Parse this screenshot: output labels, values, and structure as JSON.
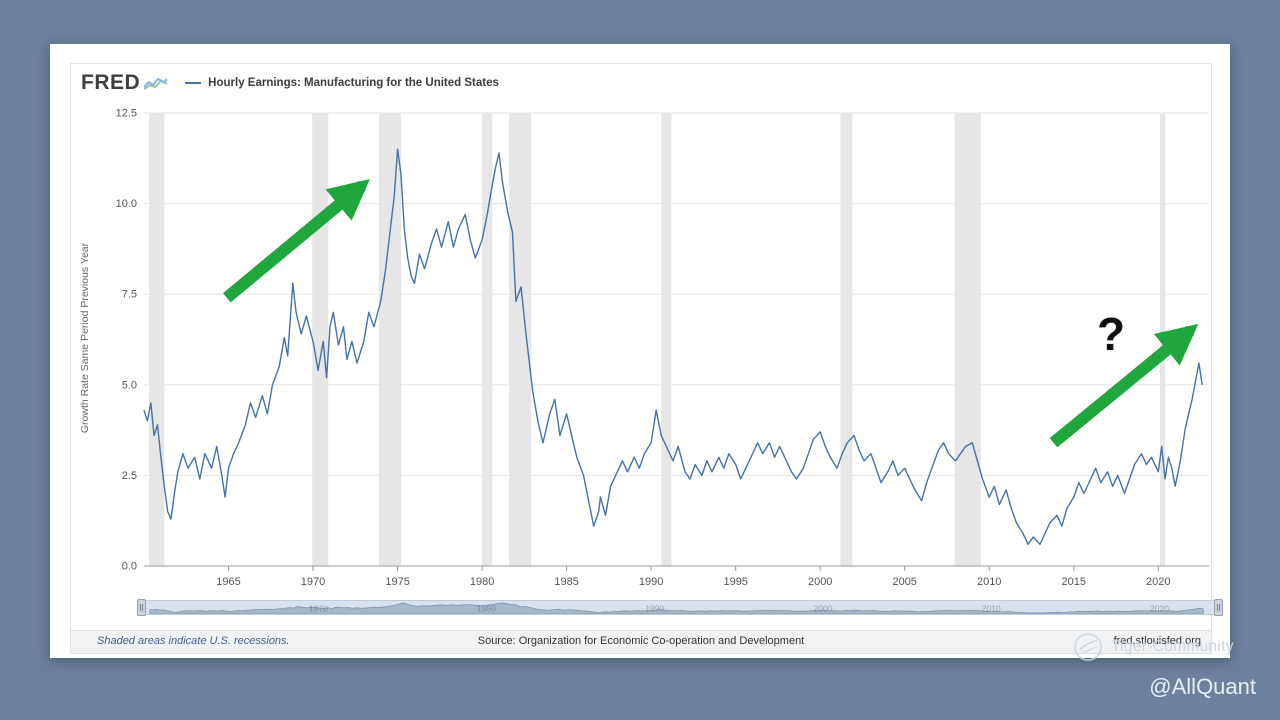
{
  "page": {
    "background_color": "#6c819f",
    "watermark_community": "Tiger-Community",
    "watermark_handle": "@AllQuant"
  },
  "chart": {
    "brand": "FRED",
    "legend_label": "Hourly Earnings: Manufacturing for the United States",
    "y_axis_label": "Growth Rate Same Period Previous Year",
    "footer_left": "Shaded areas indicate U.S. recessions.",
    "footer_center": "Source: Organization for Economic Co-operation and Development",
    "footer_right": "fred.stlouisfed.org",
    "line_color": "#4572a7",
    "recession_color": "#e6e6e6",
    "accent_green": "#1fa63d"
  },
  "chart_data": {
    "type": "line",
    "title": "Hourly Earnings: Manufacturing for the United States",
    "xlabel": "",
    "ylabel": "Growth Rate Same Period Previous Year",
    "legend_position": "top",
    "grid": "horizontal",
    "x_range": [
      1960,
      2023
    ],
    "y_range": [
      0,
      12.5
    ],
    "y_ticks": [
      "0.0",
      "2.5",
      "5.0",
      "7.5",
      "10.0",
      "12.5"
    ],
    "x_ticks": [
      1965,
      1970,
      1975,
      1980,
      1985,
      1990,
      1995,
      2000,
      2005,
      2010,
      2015,
      2020
    ],
    "slider_year_labels": [
      1970,
      1980,
      1990,
      2000,
      2010,
      2020
    ],
    "recessions": [
      [
        1960.3,
        1961.2
      ],
      [
        1969.95,
        1970.9
      ],
      [
        1973.9,
        1975.2
      ],
      [
        1980.0,
        1980.6
      ],
      [
        1981.6,
        1982.9
      ],
      [
        1990.6,
        1991.2
      ],
      [
        2001.2,
        2001.9
      ],
      [
        2007.95,
        2009.5
      ],
      [
        2020.1,
        2020.4
      ]
    ],
    "series": [
      {
        "name": "Hourly Earnings: Manufacturing for the United States",
        "points": [
          [
            1960.0,
            4.3
          ],
          [
            1960.2,
            4.0
          ],
          [
            1960.4,
            4.5
          ],
          [
            1960.6,
            3.6
          ],
          [
            1960.8,
            3.9
          ],
          [
            1961.0,
            3.0
          ],
          [
            1961.2,
            2.2
          ],
          [
            1961.4,
            1.5
          ],
          [
            1961.6,
            1.3
          ],
          [
            1961.8,
            2.0
          ],
          [
            1962.0,
            2.6
          ],
          [
            1962.3,
            3.1
          ],
          [
            1962.6,
            2.7
          ],
          [
            1963.0,
            3.0
          ],
          [
            1963.3,
            2.4
          ],
          [
            1963.6,
            3.1
          ],
          [
            1964.0,
            2.7
          ],
          [
            1964.3,
            3.3
          ],
          [
            1964.6,
            2.5
          ],
          [
            1964.8,
            1.9
          ],
          [
            1965.0,
            2.7
          ],
          [
            1965.3,
            3.1
          ],
          [
            1965.6,
            3.4
          ],
          [
            1966.0,
            3.9
          ],
          [
            1966.3,
            4.5
          ],
          [
            1966.6,
            4.1
          ],
          [
            1967.0,
            4.7
          ],
          [
            1967.3,
            4.2
          ],
          [
            1967.6,
            5.0
          ],
          [
            1968.0,
            5.5
          ],
          [
            1968.3,
            6.3
          ],
          [
            1968.5,
            5.8
          ],
          [
            1968.8,
            7.8
          ],
          [
            1969.0,
            7.0
          ],
          [
            1969.3,
            6.4
          ],
          [
            1969.6,
            6.9
          ],
          [
            1970.0,
            6.2
          ],
          [
            1970.3,
            5.4
          ],
          [
            1970.6,
            6.2
          ],
          [
            1970.8,
            5.2
          ],
          [
            1971.0,
            6.6
          ],
          [
            1971.2,
            7.0
          ],
          [
            1971.5,
            6.1
          ],
          [
            1971.8,
            6.6
          ],
          [
            1972.0,
            5.7
          ],
          [
            1972.3,
            6.2
          ],
          [
            1972.6,
            5.6
          ],
          [
            1973.0,
            6.2
          ],
          [
            1973.3,
            7.0
          ],
          [
            1973.6,
            6.6
          ],
          [
            1974.0,
            7.3
          ],
          [
            1974.3,
            8.2
          ],
          [
            1974.6,
            9.4
          ],
          [
            1974.8,
            10.2
          ],
          [
            1975.0,
            11.5
          ],
          [
            1975.2,
            10.8
          ],
          [
            1975.4,
            9.3
          ],
          [
            1975.6,
            8.5
          ],
          [
            1975.8,
            8.0
          ],
          [
            1976.0,
            7.8
          ],
          [
            1976.3,
            8.6
          ],
          [
            1976.6,
            8.2
          ],
          [
            1977.0,
            8.9
          ],
          [
            1977.3,
            9.3
          ],
          [
            1977.6,
            8.8
          ],
          [
            1978.0,
            9.5
          ],
          [
            1978.3,
            8.8
          ],
          [
            1978.6,
            9.3
          ],
          [
            1979.0,
            9.7
          ],
          [
            1979.3,
            9.0
          ],
          [
            1979.6,
            8.5
          ],
          [
            1980.0,
            9.0
          ],
          [
            1980.3,
            9.7
          ],
          [
            1980.6,
            10.5
          ],
          [
            1980.8,
            11.0
          ],
          [
            1981.0,
            11.4
          ],
          [
            1981.2,
            10.6
          ],
          [
            1981.5,
            9.8
          ],
          [
            1981.8,
            9.2
          ],
          [
            1982.0,
            7.3
          ],
          [
            1982.3,
            7.7
          ],
          [
            1982.6,
            6.4
          ],
          [
            1983.0,
            4.8
          ],
          [
            1983.3,
            4.0
          ],
          [
            1983.6,
            3.4
          ],
          [
            1984.0,
            4.2
          ],
          [
            1984.3,
            4.6
          ],
          [
            1984.6,
            3.6
          ],
          [
            1985.0,
            4.2
          ],
          [
            1985.3,
            3.6
          ],
          [
            1985.6,
            3.0
          ],
          [
            1986.0,
            2.5
          ],
          [
            1986.3,
            1.8
          ],
          [
            1986.6,
            1.1
          ],
          [
            1986.9,
            1.5
          ],
          [
            1987.0,
            1.9
          ],
          [
            1987.3,
            1.4
          ],
          [
            1987.6,
            2.2
          ],
          [
            1988.0,
            2.6
          ],
          [
            1988.3,
            2.9
          ],
          [
            1988.6,
            2.6
          ],
          [
            1989.0,
            3.0
          ],
          [
            1989.3,
            2.7
          ],
          [
            1989.6,
            3.1
          ],
          [
            1990.0,
            3.4
          ],
          [
            1990.3,
            4.3
          ],
          [
            1990.6,
            3.6
          ],
          [
            1991.0,
            3.2
          ],
          [
            1991.3,
            2.9
          ],
          [
            1991.6,
            3.3
          ],
          [
            1992.0,
            2.6
          ],
          [
            1992.3,
            2.4
          ],
          [
            1992.6,
            2.8
          ],
          [
            1993.0,
            2.5
          ],
          [
            1993.3,
            2.9
          ],
          [
            1993.6,
            2.6
          ],
          [
            1994.0,
            3.0
          ],
          [
            1994.3,
            2.7
          ],
          [
            1994.6,
            3.1
          ],
          [
            1995.0,
            2.8
          ],
          [
            1995.3,
            2.4
          ],
          [
            1995.6,
            2.7
          ],
          [
            1996.0,
            3.1
          ],
          [
            1996.3,
            3.4
          ],
          [
            1996.6,
            3.1
          ],
          [
            1997.0,
            3.4
          ],
          [
            1997.3,
            3.0
          ],
          [
            1997.6,
            3.3
          ],
          [
            1998.0,
            2.9
          ],
          [
            1998.3,
            2.6
          ],
          [
            1998.6,
            2.4
          ],
          [
            1999.0,
            2.7
          ],
          [
            1999.3,
            3.1
          ],
          [
            1999.6,
            3.5
          ],
          [
            2000.0,
            3.7
          ],
          [
            2000.3,
            3.3
          ],
          [
            2000.6,
            3.0
          ],
          [
            2001.0,
            2.7
          ],
          [
            2001.3,
            3.1
          ],
          [
            2001.6,
            3.4
          ],
          [
            2002.0,
            3.6
          ],
          [
            2002.3,
            3.2
          ],
          [
            2002.6,
            2.9
          ],
          [
            2003.0,
            3.1
          ],
          [
            2003.3,
            2.7
          ],
          [
            2003.6,
            2.3
          ],
          [
            2004.0,
            2.6
          ],
          [
            2004.3,
            2.9
          ],
          [
            2004.6,
            2.5
          ],
          [
            2005.0,
            2.7
          ],
          [
            2005.3,
            2.4
          ],
          [
            2005.6,
            2.1
          ],
          [
            2006.0,
            1.8
          ],
          [
            2006.3,
            2.3
          ],
          [
            2006.6,
            2.7
          ],
          [
            2007.0,
            3.2
          ],
          [
            2007.3,
            3.4
          ],
          [
            2007.6,
            3.1
          ],
          [
            2008.0,
            2.9
          ],
          [
            2008.3,
            3.1
          ],
          [
            2008.6,
            3.3
          ],
          [
            2009.0,
            3.4
          ],
          [
            2009.3,
            2.9
          ],
          [
            2009.6,
            2.4
          ],
          [
            2010.0,
            1.9
          ],
          [
            2010.3,
            2.2
          ],
          [
            2010.6,
            1.7
          ],
          [
            2011.0,
            2.1
          ],
          [
            2011.3,
            1.6
          ],
          [
            2011.6,
            1.2
          ],
          [
            2012.0,
            0.9
          ],
          [
            2012.3,
            0.6
          ],
          [
            2012.6,
            0.8
          ],
          [
            2013.0,
            0.6
          ],
          [
            2013.3,
            0.9
          ],
          [
            2013.6,
            1.2
          ],
          [
            2014.0,
            1.4
          ],
          [
            2014.3,
            1.1
          ],
          [
            2014.6,
            1.6
          ],
          [
            2015.0,
            1.9
          ],
          [
            2015.3,
            2.3
          ],
          [
            2015.6,
            2.0
          ],
          [
            2016.0,
            2.4
          ],
          [
            2016.3,
            2.7
          ],
          [
            2016.6,
            2.3
          ],
          [
            2017.0,
            2.6
          ],
          [
            2017.3,
            2.2
          ],
          [
            2017.6,
            2.5
          ],
          [
            2018.0,
            2.0
          ],
          [
            2018.3,
            2.4
          ],
          [
            2018.6,
            2.8
          ],
          [
            2019.0,
            3.1
          ],
          [
            2019.3,
            2.8
          ],
          [
            2019.6,
            3.0
          ],
          [
            2020.0,
            2.6
          ],
          [
            2020.2,
            3.3
          ],
          [
            2020.4,
            2.4
          ],
          [
            2020.6,
            3.0
          ],
          [
            2020.8,
            2.7
          ],
          [
            2021.0,
            2.2
          ],
          [
            2021.3,
            2.9
          ],
          [
            2021.6,
            3.8
          ],
          [
            2022.0,
            4.6
          ],
          [
            2022.2,
            5.1
          ],
          [
            2022.4,
            5.6
          ],
          [
            2022.6,
            5.0
          ]
        ]
      }
    ],
    "annotations": {
      "arrows": [
        {
          "from": [
            1964.9,
            7.4
          ],
          "to": [
            1972.9,
            10.5
          ]
        },
        {
          "from": [
            2013.8,
            3.4
          ],
          "to": [
            2021.9,
            6.5
          ]
        }
      ],
      "question_mark": {
        "at": [
          2017.2,
          6.4
        ],
        "text": "?"
      }
    }
  }
}
